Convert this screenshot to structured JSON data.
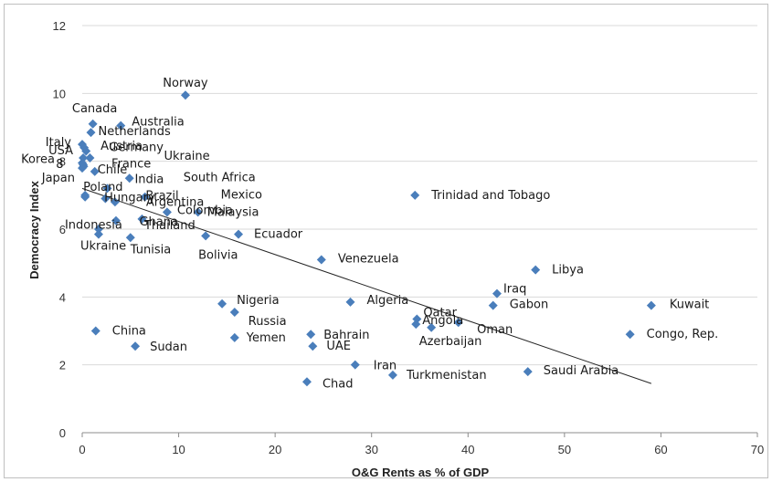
{
  "chart_data": {
    "type": "scatter",
    "xlabel": "O&G Rents as % of GDP",
    "ylabel": "Democracy Index",
    "xlim": [
      0,
      70
    ],
    "ylim": [
      0,
      12
    ],
    "xticks": [
      "0",
      "10",
      "20",
      "30",
      "40",
      "50",
      "60",
      "70"
    ],
    "yticks": [
      "0",
      "2",
      "4",
      "6",
      "8",
      "10",
      "12"
    ],
    "grid": "horizontal",
    "marker_color": "#4a7ebb",
    "trendline": {
      "x": [
        0,
        59
      ],
      "y": [
        7.2,
        1.45
      ]
    },
    "points": [
      {
        "label": "Norway",
        "x": 10.7,
        "y": 9.95
      },
      {
        "label": "Canada",
        "x": 1.1,
        "y": 9.1
      },
      {
        "label": "Australia",
        "x": 4.0,
        "y": 9.05
      },
      {
        "label": "Netherlands",
        "x": 0.9,
        "y": 8.85
      },
      {
        "label": "Italy",
        "x": 0.0,
        "y": 8.5
      },
      {
        "label": "Austria",
        "x": 0.2,
        "y": 8.4
      },
      {
        "label": "Germany",
        "x": 0.4,
        "y": 8.3
      },
      {
        "label": "Ukraine",
        "x": 0.8,
        "y": 8.1
      },
      {
        "label": "USA",
        "x": 0.1,
        "y": 8.1
      },
      {
        "label": "Korea",
        "x": 0.0,
        "y": 7.95
      },
      {
        "label": "France",
        "x": 0.1,
        "y": 7.9
      },
      {
        "label": "8",
        "x": 0.15,
        "y": 7.85
      },
      {
        "label": "Chile",
        "x": 1.3,
        "y": 7.7
      },
      {
        "label": "Japan",
        "x": 0.0,
        "y": 7.8
      },
      {
        "label": "South Africa",
        "x": 4.9,
        "y": 7.5
      },
      {
        "label": "India",
        "x": 2.6,
        "y": 7.2
      },
      {
        "label": "Poland",
        "x": 0.3,
        "y": 7.0
      },
      {
        "label": "Brazil",
        "x": 2.4,
        "y": 6.9
      },
      {
        "label": "Mexico",
        "x": 6.5,
        "y": 6.95
      },
      {
        "label": "Hungary",
        "x": 0.3,
        "y": 6.95
      },
      {
        "label": "Argentina",
        "x": 3.4,
        "y": 6.8
      },
      {
        "label": "Malaysia",
        "x": 12.0,
        "y": 6.5
      },
      {
        "label": "Colombia",
        "x": 8.8,
        "y": 6.5
      },
      {
        "label": "Indonesia",
        "x": 3.5,
        "y": 6.25
      },
      {
        "label": "Ghana",
        "x": 6.2,
        "y": 6.3
      },
      {
        "label": "Thailand",
        "x": 1.7,
        "y": 6.0
      },
      {
        "label": "Ecuador",
        "x": 16.2,
        "y": 5.85
      },
      {
        "label": "Ukraine",
        "x": 1.7,
        "y": 5.85
      },
      {
        "label": "Tunisia",
        "x": 5.0,
        "y": 5.75
      },
      {
        "label": "Bolivia",
        "x": 12.8,
        "y": 5.8
      },
      {
        "label": "Trinidad and Tobago",
        "x": 34.5,
        "y": 7.0
      },
      {
        "label": "Venezuela",
        "x": 24.8,
        "y": 5.1
      },
      {
        "label": "Libya",
        "x": 47.0,
        "y": 4.8
      },
      {
        "label": "Nigeria",
        "x": 14.5,
        "y": 3.8
      },
      {
        "label": "Russia",
        "x": 15.8,
        "y": 3.55
      },
      {
        "label": "Algeria",
        "x": 27.8,
        "y": 3.85
      },
      {
        "label": "Iraq",
        "x": 43.0,
        "y": 4.1
      },
      {
        "label": "Gabon",
        "x": 42.6,
        "y": 3.75
      },
      {
        "label": "Kuwait",
        "x": 59.0,
        "y": 3.75
      },
      {
        "label": "Qatar",
        "x": 34.7,
        "y": 3.35
      },
      {
        "label": "Angola",
        "x": 34.6,
        "y": 3.2
      },
      {
        "label": "Oman",
        "x": 36.2,
        "y": 3.1
      },
      {
        "label": "Azerbaijan",
        "x": 39.0,
        "y": 3.25
      },
      {
        "label": "China",
        "x": 1.4,
        "y": 3.0
      },
      {
        "label": "Congo, Rep.",
        "x": 56.8,
        "y": 2.9
      },
      {
        "label": "Bahrain",
        "x": 23.7,
        "y": 2.9
      },
      {
        "label": "Yemen",
        "x": 15.8,
        "y": 2.8
      },
      {
        "label": "UAE",
        "x": 23.9,
        "y": 2.55
      },
      {
        "label": "Sudan",
        "x": 5.5,
        "y": 2.55
      },
      {
        "label": "Iran",
        "x": 28.3,
        "y": 2.0
      },
      {
        "label": "Saudi Arabia",
        "x": 46.2,
        "y": 1.8
      },
      {
        "label": "Turkmenistan",
        "x": 32.2,
        "y": 1.7
      },
      {
        "label": "Chad",
        "x": 23.3,
        "y": 1.5
      }
    ]
  }
}
